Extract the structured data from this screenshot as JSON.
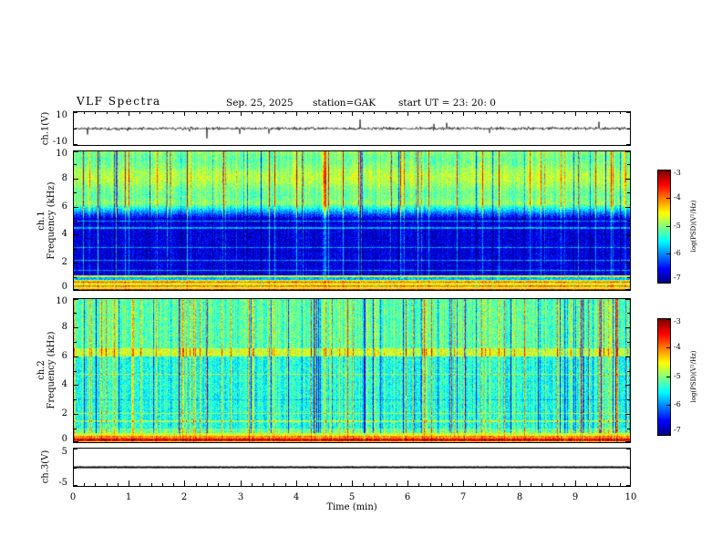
{
  "header": {
    "title": "VLF  Spectra",
    "date": "Sep. 25, 2025",
    "station": "station=GAK",
    "start_ut": "start UT  =   23: 20: 0"
  },
  "xaxis": {
    "label": "Time  (min)",
    "range": [
      0,
      10
    ],
    "ticks": [
      0,
      1,
      2,
      3,
      4,
      5,
      6,
      7,
      8,
      9,
      10
    ]
  },
  "colorbar": {
    "label": "log(PSD)(V²/Hz)",
    "range": [
      -7,
      -3
    ],
    "ticks": [
      -3,
      -4,
      -5,
      -6,
      -7
    ],
    "colormap": "jet"
  },
  "chart_data": [
    {
      "type": "line",
      "name": "ch1-waveform",
      "ylabel": "ch.1(V)",
      "ylim": [
        -10,
        10
      ],
      "yticks": [
        10,
        -10
      ],
      "description": "broadband noise waveform centered on 0 V, mostly within ±2 V with sporadic spikes reaching about ±7 V"
    },
    {
      "type": "heatmap",
      "name": "ch1-spectrogram",
      "ylabel_line1": "ch.1",
      "ylabel_line2": "Frequency (kHz)",
      "ylim": [
        0,
        10
      ],
      "yticks": [
        0,
        2,
        4,
        6,
        8,
        10
      ],
      "value_range": [
        -7,
        -3
      ],
      "units": "log(PSD)(V²/Hz)",
      "colormap": "jet",
      "features": [
        "intense yellow/orange band below ~0.8 kHz with a red line near 0.1 kHz",
        "quiet dark blue/black band from ~1 to ~5 kHz",
        "narrow horizontal emission lines near 1.5, 2.2, 3.1, 4.5 and 5.0 kHz",
        "diffuse green emission 6–10 kHz with dense vertical burst striations (yellow/red columns and dark gaps)"
      ]
    },
    {
      "type": "heatmap",
      "name": "ch2-spectrogram",
      "ylabel_line1": "ch.2",
      "ylabel_line2": "Frequency (kHz)",
      "ylim": [
        0,
        10
      ],
      "yticks": [
        0,
        2,
        4,
        6,
        8,
        10
      ],
      "value_range": [
        -7,
        -3
      ],
      "units": "log(PSD)(V²/Hz)",
      "colormap": "jet",
      "features": [
        "bright band below ~0.7 kHz with a red horizontal line near 0.2 kHz",
        "cyan/blue speckled background 1–10 kHz crossed by many vertical green and dark navy striations",
        "green horizontal band near 6–6.6 kHz",
        "weak horizontal lines near 1.5, 2.0 and 4.8 kHz"
      ]
    },
    {
      "type": "line",
      "name": "ch3-waveform",
      "ylabel": "ch.3(V)",
      "ylim": [
        -5,
        5
      ],
      "yticks": [
        5,
        -5
      ],
      "description": "flat trace at 0 V for the whole interval"
    }
  ]
}
